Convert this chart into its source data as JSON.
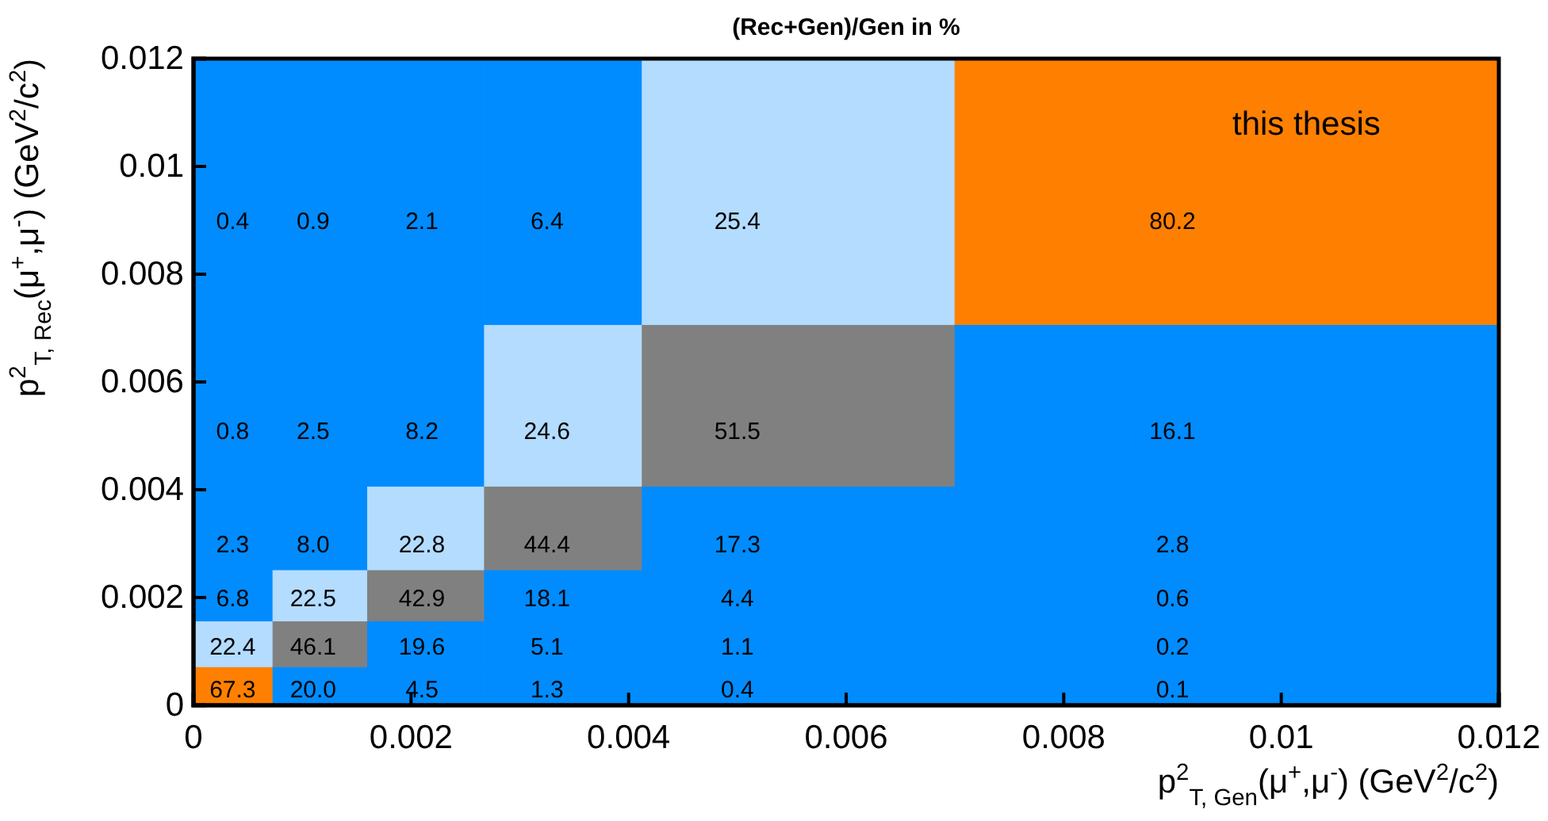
{
  "chart_data": {
    "type": "heatmap",
    "title": "(Rec+Gen)/Gen in %",
    "xlabel": "p$^{2}$$_{T, Gen}$(μ$^{+}$,μ$^{-}$)  (GeV$^{2}$/c$^{2}$)",
    "ylabel": "p$^{2}$$_{T, Rec}$(μ$^{+}$,μ$^{-}$)  (GeV$^{2}$/c$^{2}$)",
    "x": [
      0.00036,
      0.0011,
      0.0021,
      0.00325,
      0.005,
      0.009
    ],
    "y": [
      0.009,
      0.0051,
      0.003,
      0.002,
      0.0011,
      0.0003
    ],
    "cell_labels": [
      [
        "0.4",
        "0.9",
        "2.1",
        "6.4",
        "25.4",
        "80.2"
      ],
      [
        "0.8",
        "2.5",
        "8.2",
        "24.6",
        "51.5",
        "16.1"
      ],
      [
        "2.3",
        "8.0",
        "22.8",
        "44.4",
        "17.3",
        "2.8"
      ],
      [
        "6.8",
        "22.5",
        "42.9",
        "18.1",
        "4.4",
        "0.6"
      ],
      [
        "22.4",
        "46.1",
        "19.6",
        "5.1",
        "1.1",
        "0.2"
      ],
      [
        "67.3",
        "20.0",
        "4.5",
        "1.3",
        "0.4",
        "0.1"
      ]
    ],
    "cells": [
      [
        0.4,
        0.9,
        2.1,
        6.4,
        25.4,
        80.2
      ],
      [
        0.8,
        2.5,
        8.2,
        24.6,
        51.5,
        16.1
      ],
      [
        2.3,
        8.0,
        22.8,
        44.4,
        17.3,
        2.8
      ],
      [
        6.8,
        22.5,
        42.9,
        18.1,
        4.4,
        0.6
      ],
      [
        22.4,
        46.1,
        19.6,
        5.1,
        1.1,
        0.2
      ],
      [
        67.3,
        20.0,
        4.5,
        1.3,
        0.4,
        0.1
      ]
    ],
    "colors": [
      "#008cff",
      "#b3dcff",
      "#808080",
      "#ff8000"
    ],
    "xlim": [
      0,
      0.012
    ],
    "ylim": [
      0,
      0.012
    ],
    "xticks": [
      0,
      0.002,
      0.004,
      0.006,
      0.008,
      0.01,
      0.012
    ],
    "yticks": [
      0,
      0.002,
      0.004,
      0.006,
      0.008,
      0.01,
      0.012
    ],
    "annotations": [
      "this thesis"
    ]
  }
}
